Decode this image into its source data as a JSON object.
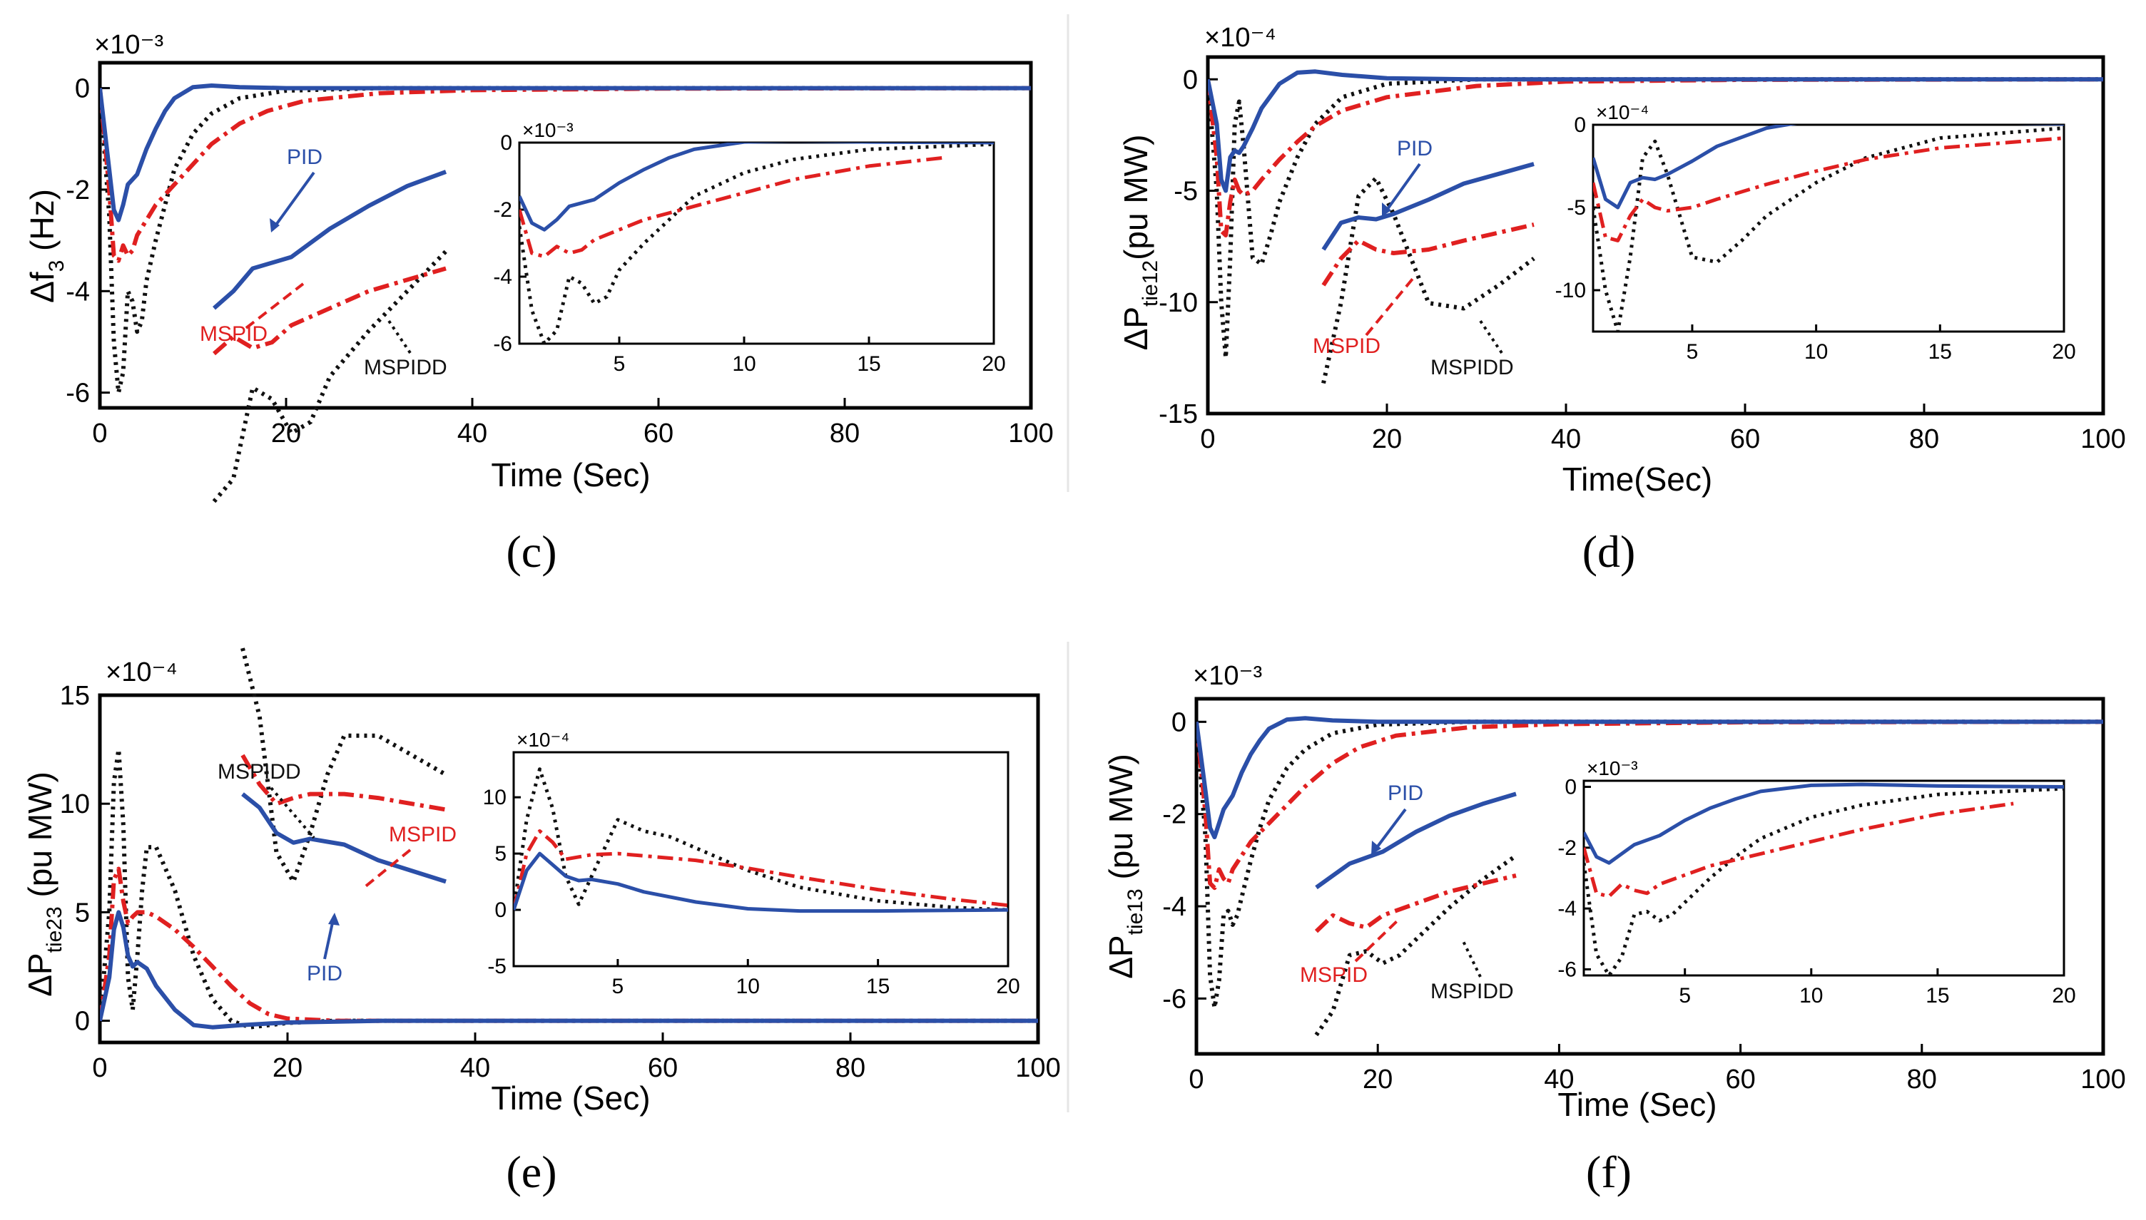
{
  "colors": {
    "pid": "#2b4fa8",
    "mspid": "#e02020",
    "mspidd": "#111111"
  },
  "legend_names": {
    "pid": "PID",
    "mspid": "MSPID",
    "mspidd": "MSPIDD"
  },
  "chart_data": [
    {
      "id": "c",
      "type": "line",
      "caption": "(c)",
      "title": "",
      "xlabel": "Time (Sec)",
      "ylabel": "Δf",
      "ylabel_sub": "3",
      "ylabel_tail": " (Hz)",
      "exponent": "×10⁻³",
      "xlim": [
        0,
        100
      ],
      "ylim": [
        -6.3,
        0.5
      ],
      "xticks": [
        0,
        20,
        40,
        60,
        80,
        100
      ],
      "yticks": [
        0,
        -2,
        -4,
        -6
      ],
      "series": [
        {
          "name": "PID",
          "x": [
            0,
            1,
            1.5,
            2,
            2.5,
            3,
            4,
            5,
            6,
            7,
            8,
            10,
            12,
            15,
            20,
            30,
            100
          ],
          "y": [
            0,
            -1.6,
            -2.4,
            -2.6,
            -2.3,
            -1.9,
            -1.7,
            -1.2,
            -0.8,
            -0.45,
            -0.2,
            0.02,
            0.05,
            0.02,
            0,
            0,
            0
          ]
        },
        {
          "name": "MSPID",
          "x": [
            0,
            1,
            1.5,
            2,
            2.5,
            3,
            3.5,
            4,
            5,
            6,
            8,
            10,
            12,
            15,
            18,
            22,
            30,
            40,
            60,
            100
          ],
          "y": [
            0,
            -2,
            -3.3,
            -3.4,
            -3.1,
            -3.3,
            -3.2,
            -2.9,
            -2.6,
            -2.3,
            -1.9,
            -1.5,
            -1.1,
            -0.7,
            -0.45,
            -0.25,
            -0.1,
            -0.04,
            -0.01,
            0
          ]
        },
        {
          "name": "MSPIDD",
          "x": [
            0,
            1,
            1.5,
            2,
            2.5,
            3,
            3.5,
            4,
            4.5,
            5,
            6,
            7,
            8,
            10,
            12,
            15,
            20,
            30,
            100
          ],
          "y": [
            0,
            -2.5,
            -5,
            -6,
            -5.6,
            -4,
            -4.2,
            -4.8,
            -4.6,
            -3.8,
            -3,
            -2.3,
            -1.6,
            -0.9,
            -0.5,
            -0.2,
            -0.05,
            0,
            0
          ]
        }
      ],
      "inset": {
        "xlim": [
          1,
          20
        ],
        "ylim": [
          -6,
          0
        ],
        "xticks": [
          5,
          10,
          15,
          20
        ],
        "yticks": [
          0,
          -2,
          -4,
          -6
        ],
        "exponent": "×10⁻³"
      },
      "annotations": [
        "PID",
        "MSPID",
        "MSPIDD"
      ]
    },
    {
      "id": "d",
      "type": "line",
      "caption": "(d)",
      "title": "",
      "xlabel": "Time(Sec)",
      "ylabel": "ΔP",
      "ylabel_sub": "tie12",
      "ylabel_tail": "(pu MW)",
      "exponent": "×10⁻⁴",
      "xlim": [
        0,
        100
      ],
      "ylim": [
        -15,
        1
      ],
      "xticks": [
        0,
        20,
        40,
        60,
        80,
        100
      ],
      "yticks": [
        0,
        -5,
        -10,
        -15
      ],
      "series": [
        {
          "name": "PID",
          "x": [
            0,
            1,
            1.5,
            2,
            2.5,
            3,
            3.5,
            4,
            5,
            6,
            8,
            10,
            12,
            15,
            20,
            30,
            40,
            100
          ],
          "y": [
            0,
            -2,
            -4.5,
            -5,
            -3.5,
            -3.2,
            -3.3,
            -3,
            -2.2,
            -1.3,
            -0.2,
            0.3,
            0.35,
            0.2,
            0.05,
            0,
            0,
            0
          ]
        },
        {
          "name": "MSPID",
          "x": [
            0,
            1,
            1.5,
            2,
            2.5,
            3,
            3.5,
            4,
            5,
            6,
            8,
            10,
            12,
            15,
            20,
            30,
            40,
            60,
            100
          ],
          "y": [
            0,
            -3.5,
            -6.8,
            -7,
            -5.5,
            -4.5,
            -5,
            -5.2,
            -5,
            -4.5,
            -3.6,
            -2.8,
            -2.1,
            -1.4,
            -0.8,
            -0.3,
            -0.1,
            -0.02,
            0
          ]
        },
        {
          "name": "MSPIDD",
          "x": [
            0,
            1,
            1.5,
            2,
            2.5,
            3,
            3.5,
            4,
            5,
            6,
            7,
            8,
            10,
            12,
            15,
            20,
            30,
            100
          ],
          "y": [
            0,
            -5,
            -10,
            -12.5,
            -8,
            -2,
            -1,
            -3,
            -8,
            -8.3,
            -7,
            -5.5,
            -3.5,
            -2,
            -0.8,
            -0.2,
            0,
            0
          ]
        }
      ],
      "inset": {
        "xlim": [
          1,
          20
        ],
        "ylim": [
          -12.5,
          0
        ],
        "xticks": [
          5,
          10,
          15,
          20
        ],
        "yticks": [
          0,
          -5,
          -10
        ],
        "exponent": "×10⁻⁴"
      },
      "annotations": [
        "PID",
        "MSPID",
        "MSPIDD"
      ]
    },
    {
      "id": "e",
      "type": "line",
      "caption": "(e)",
      "title": "",
      "xlabel": "Time (Sec)",
      "ylabel": "ΔP",
      "ylabel_sub": "tie23",
      "ylabel_tail": " (pu MW)",
      "exponent": "×10⁻⁴",
      "xlim": [
        0,
        100
      ],
      "ylim": [
        -1,
        15
      ],
      "xticks": [
        0,
        20,
        40,
        60,
        80,
        100
      ],
      "yticks": [
        0,
        5,
        10,
        15
      ],
      "series": [
        {
          "name": "PID",
          "x": [
            0,
            1,
            1.5,
            2,
            2.5,
            3,
            3.5,
            4,
            5,
            6,
            8,
            10,
            12,
            15,
            20,
            30,
            100
          ],
          "y": [
            0,
            2,
            4.2,
            5,
            4.3,
            3,
            2.5,
            2.7,
            2.4,
            1.6,
            0.5,
            -0.2,
            -0.3,
            -0.2,
            -0.08,
            0,
            0
          ]
        },
        {
          "name": "MSPID",
          "x": [
            0,
            1,
            1.5,
            2,
            2.5,
            3,
            3.5,
            4,
            5,
            6,
            8,
            10,
            12,
            14,
            16,
            18,
            20,
            25,
            30,
            40,
            60,
            100
          ],
          "y": [
            0,
            3,
            6.5,
            7,
            5.5,
            4.5,
            4.8,
            5,
            5,
            4.8,
            4.2,
            3.4,
            2.5,
            1.6,
            0.8,
            0.3,
            0.1,
            0,
            0,
            0,
            0,
            0
          ]
        },
        {
          "name": "MSPIDD",
          "x": [
            0,
            1,
            1.5,
            2,
            2.5,
            3,
            3.5,
            4,
            4.5,
            5,
            6,
            7,
            8,
            10,
            12,
            14,
            16,
            18,
            20,
            25,
            100
          ],
          "y": [
            0,
            5,
            11,
            12.5,
            9,
            2,
            0.5,
            3,
            6,
            8,
            8,
            7,
            6,
            3,
            1,
            0,
            -0.3,
            -0.2,
            -0.1,
            0,
            0
          ]
        }
      ],
      "inset": {
        "xlim": [
          1,
          20
        ],
        "ylim": [
          -5,
          14
        ],
        "xticks": [
          5,
          10,
          15,
          20
        ],
        "yticks": [
          10,
          5,
          0,
          -5
        ],
        "exponent": "×10⁻⁴",
        "series_override": {
          "PID": {
            "x": [
              1,
              1.5,
              2,
              2.5,
              3,
              3.5,
              4,
              5,
              6,
              8,
              10,
              12,
              15,
              20
            ],
            "y": [
              0,
              3.5,
              5,
              4,
              3,
              2.6,
              2.7,
              2.3,
              1.6,
              0.7,
              0.1,
              -0.1,
              -0.1,
              0
            ]
          },
          "MSPID": {
            "x": [
              1,
              1.5,
              2,
              2.5,
              3,
              3.5,
              4,
              5,
              6,
              8,
              10,
              12,
              15,
              18,
              20
            ],
            "y": [
              0,
              5,
              7,
              6,
              4.5,
              4.7,
              4.9,
              5,
              4.8,
              4.4,
              3.7,
              2.9,
              1.8,
              0.9,
              0.4
            ]
          },
          "MSPIDD": {
            "x": [
              1,
              1.5,
              2,
              2.5,
              3,
              3.5,
              4,
              5,
              6,
              7,
              8,
              10,
              12,
              15,
              18,
              20
            ],
            "y": [
              0,
              8,
              12.5,
              9,
              3,
              0.5,
              3,
              8,
              7,
              6.5,
              5.5,
              3.5,
              2,
              0.8,
              0.2,
              0
            ]
          }
        }
      },
      "annotations": [
        "MSPIDD",
        "MSPID",
        "PID"
      ]
    },
    {
      "id": "f",
      "type": "line",
      "caption": "(f)",
      "title": "",
      "xlabel": "Time (Sec)",
      "ylabel": "ΔP",
      "ylabel_sub": "tie13",
      "ylabel_tail": " (pu MW)",
      "exponent": "×10⁻³",
      "xlim": [
        0,
        100
      ],
      "ylim": [
        -7.2,
        0.5
      ],
      "xticks": [
        0,
        20,
        40,
        60,
        80,
        100
      ],
      "yticks": [
        0,
        -2,
        -4,
        -6
      ],
      "series": [
        {
          "name": "PID",
          "x": [
            0,
            1,
            1.5,
            2,
            2.5,
            3,
            4,
            5,
            6,
            7,
            8,
            10,
            12,
            15,
            20,
            30,
            100
          ],
          "y": [
            0,
            -1.5,
            -2.3,
            -2.5,
            -2.2,
            -1.9,
            -1.6,
            -1.1,
            -0.7,
            -0.4,
            -0.15,
            0.05,
            0.08,
            0.03,
            0,
            0,
            0
          ]
        },
        {
          "name": "MSPID",
          "x": [
            0,
            1,
            1.5,
            2,
            2.5,
            3,
            3.5,
            4,
            5,
            6,
            8,
            10,
            12,
            15,
            18,
            22,
            30,
            40,
            60,
            100
          ],
          "y": [
            0,
            -2,
            -3.5,
            -3.6,
            -3.2,
            -3.4,
            -3.5,
            -3.2,
            -2.9,
            -2.6,
            -2.2,
            -1.8,
            -1.4,
            -0.9,
            -0.55,
            -0.3,
            -0.12,
            -0.05,
            -0.01,
            0
          ]
        },
        {
          "name": "MSPIDD",
          "x": [
            0,
            1,
            1.5,
            2,
            2.5,
            3,
            3.5,
            4,
            4.5,
            5,
            6,
            7,
            8,
            10,
            12,
            15,
            20,
            30,
            100
          ],
          "y": [
            0,
            -2.5,
            -5.5,
            -6.2,
            -5.6,
            -4.2,
            -4.1,
            -4.4,
            -4.2,
            -3.8,
            -3,
            -2.3,
            -1.7,
            -1,
            -0.6,
            -0.25,
            -0.06,
            0,
            0
          ]
        }
      ],
      "inset": {
        "xlim": [
          1,
          20
        ],
        "ylim": [
          -6.2,
          0.2
        ],
        "xticks": [
          5,
          10,
          15,
          20
        ],
        "yticks": [
          0,
          -2,
          -4,
          -6
        ],
        "exponent": "×10⁻³"
      },
      "annotations": [
        "PID",
        "MSPID",
        "MSPIDD"
      ]
    }
  ]
}
